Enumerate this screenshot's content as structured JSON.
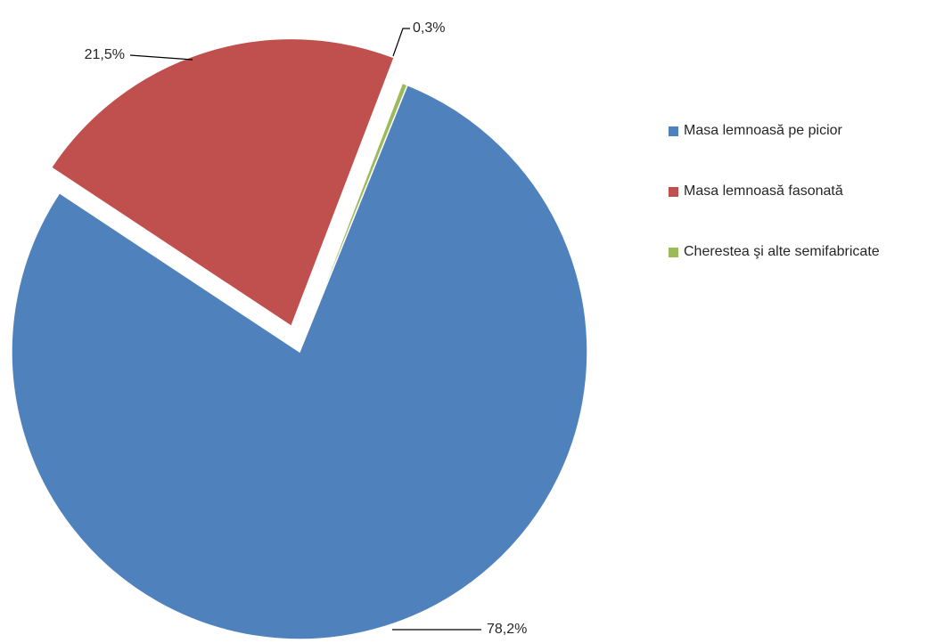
{
  "chart_data": {
    "type": "pie",
    "title": "",
    "start_angle_deg": 22,
    "exploded_slice": 1,
    "slices": [
      {
        "label": "Masa lemnoasă pe picior",
        "value": 78.2,
        "display": "78,2%",
        "color": "#4F81BD"
      },
      {
        "label": "Masa lemnoasă fasonată",
        "value": 21.5,
        "display": "21,5%",
        "color": "#C0504D"
      },
      {
        "label": "Cherestea şi alte semifabricate",
        "value": 0.3,
        "display": "0,3%",
        "color": "#9BBB59"
      }
    ],
    "legend": {
      "position": "right"
    }
  }
}
